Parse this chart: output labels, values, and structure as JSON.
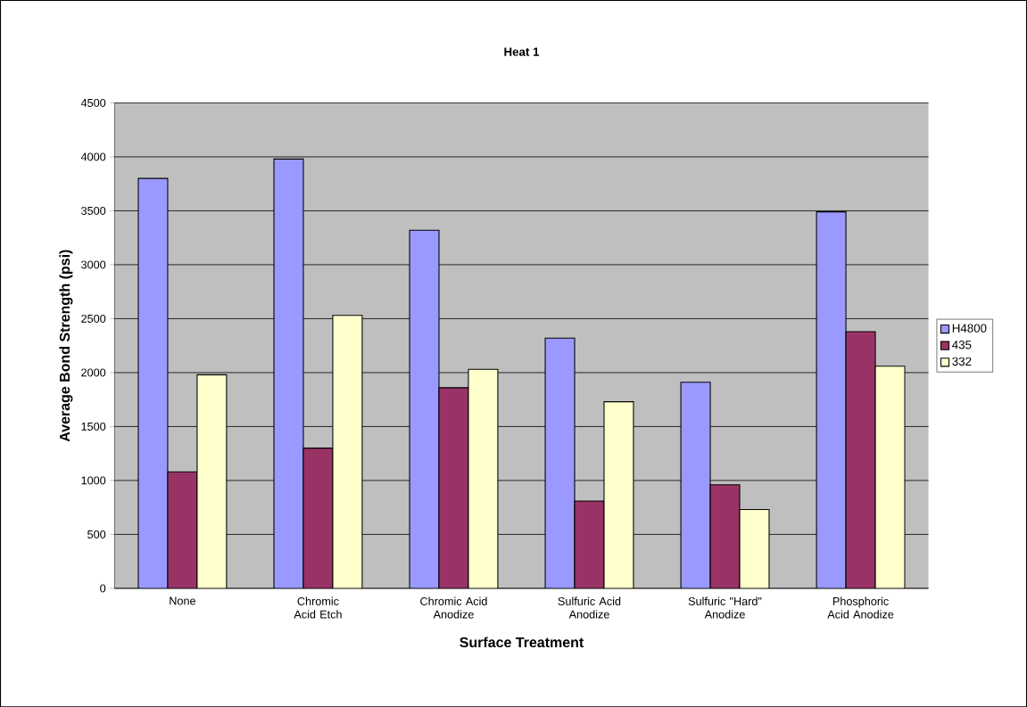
{
  "chart_data": {
    "type": "bar",
    "title": "Heat 1",
    "xlabel": "Surface Treatment",
    "ylabel": "Average Bond Strength (psi)",
    "categories": [
      "None",
      "Chromic Acid Etch",
      "Chromic Acid Anodize",
      "Sulfuric Acid Anodize",
      "Sulfuric \"Hard\" Anodize",
      "Phosphoric Acid Anodize"
    ],
    "series": [
      {
        "name": "H4800",
        "color": "#9999ff",
        "values": [
          3800,
          3980,
          3320,
          2320,
          1910,
          3490
        ]
      },
      {
        "name": "435",
        "color": "#993366",
        "values": [
          1080,
          1300,
          1860,
          810,
          960,
          2380
        ]
      },
      {
        "name": "332",
        "color": "#ffffcc",
        "values": [
          1980,
          2530,
          2030,
          1730,
          730,
          2060
        ]
      }
    ],
    "ylim": [
      0,
      4500
    ],
    "yticks": [
      0,
      500,
      1000,
      1500,
      2000,
      2500,
      3000,
      3500,
      4000,
      4500
    ],
    "grid": "y",
    "legend": "right"
  }
}
